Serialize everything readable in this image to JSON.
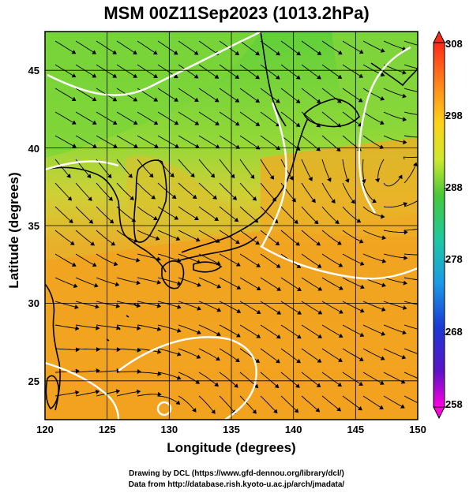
{
  "title": "MSM 00Z11Sep2023 (1013.2hPa)",
  "x_axis": {
    "label": "Longitude (degrees)",
    "ticks": [
      "120",
      "125",
      "130",
      "135",
      "140",
      "145",
      "150"
    ]
  },
  "y_axis": {
    "label": "Latitude  (degrees)",
    "ticks": [
      "25",
      "30",
      "35",
      "40",
      "45"
    ]
  },
  "colorbar": {
    "ticks": [
      "308",
      "298",
      "288",
      "278",
      "268",
      "258"
    ],
    "colors": [
      "#ff2a1a",
      "#ff8a1a",
      "#ffd21a",
      "#cfe830",
      "#46c83a",
      "#1fc8a0",
      "#1a9ae6",
      "#1a3ad2",
      "#3a12c8",
      "#ff00e0"
    ]
  },
  "credits": {
    "line1": "Drawing by DCL (https://www.gfd-dennou.org/library/dcl/)",
    "line2": "Data from http://database.rish.kyoto-u.ac.jp/arch/jmadata/"
  },
  "map": {
    "lon_range": [
      120,
      150
    ],
    "lat_range": [
      22.5,
      47.5
    ],
    "field_colors": {
      "warm": "#f0a020",
      "mid": "#e8c830",
      "cool": "#7ed43a"
    },
    "coast_color": "#000000",
    "contour_color": "#ffffff",
    "grid_color": "#000000"
  }
}
